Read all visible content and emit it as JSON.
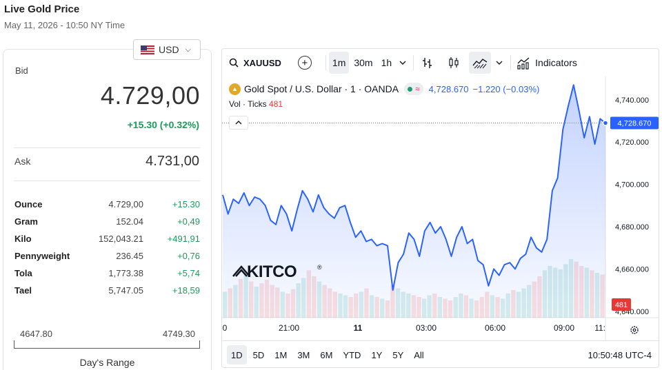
{
  "header": {
    "title": "Live Gold Price",
    "datetime": "May 11, 2026 - 10:50 NY Time"
  },
  "currency": {
    "selected": "USD",
    "icon": "us-flag-icon"
  },
  "quote": {
    "bid_label": "Bid",
    "bid": "4.729,00",
    "change": "+15.30 (+0.32%)",
    "ask_label": "Ask",
    "ask": "4.731,00"
  },
  "units": [
    {
      "name": "Ounce",
      "price": "4.729,00",
      "change": "+15.30"
    },
    {
      "name": "Gram",
      "price": "152.04",
      "change": "+0,49"
    },
    {
      "name": "Kilo",
      "price": "152,043.21",
      "change": "+491,91"
    },
    {
      "name": "Pennyweight",
      "price": "236.45",
      "change": "+0,76"
    },
    {
      "name": "Tola",
      "price": "1,773.38",
      "change": "+5,74"
    },
    {
      "name": "Tael",
      "price": "5,747.05",
      "change": "+18,59"
    }
  ],
  "day_range": {
    "low": "4647.80",
    "high": "4749.30",
    "label": "Day's Range"
  },
  "colors": {
    "up": "#1a9c5a",
    "line": "#2962ff",
    "down_volume": "#e53935"
  },
  "chart": {
    "symbol": "XAUUSD",
    "intervals": [
      "1m",
      "30m",
      "1h"
    ],
    "active_interval": "1m",
    "indicators_label": "Indicators",
    "legend": {
      "title": "Gold Spot / U.S. Dollar · 1 · OANDA",
      "price": "4,728.670",
      "change": "−1.220 (−0.03%)"
    },
    "vol_label": "Vol · Ticks",
    "vol_value": "481",
    "watermark": "KITCO",
    "ranges": [
      "1D",
      "5D",
      "1M",
      "3M",
      "6M",
      "YTD",
      "1Y",
      "5Y",
      "All"
    ],
    "active_range": "1D",
    "clock": "10:50:48 UTC-4",
    "price_label": "4,728.670",
    "volume_label": "481"
  },
  "chart_data": {
    "type": "line",
    "series": [
      {
        "values": [
          4695,
          4686,
          4693,
          4691,
          4696,
          4690,
          4694,
          4693,
          4690,
          4683,
          4681,
          4690,
          4686,
          4678,
          4688,
          4697,
          4693,
          4687,
          4695,
          4689,
          4686,
          4684,
          4689,
          4690,
          4682,
          4675,
          4678,
          4673,
          4674,
          4671,
          4672,
          4671,
          4650,
          4663,
          4667,
          4677,
          4674,
          4666,
          4678,
          4682,
          4677,
          4680,
          4674,
          4666,
          4675,
          4680,
          4672,
          4674,
          4664,
          4662,
          4652,
          4660,
          4657,
          4662,
          4663,
          4660,
          4665,
          4667,
          4675,
          4670,
          4668,
          4674,
          4697,
          4703,
          4726,
          4737,
          4747,
          4735,
          4722,
          4732,
          4719,
          4731,
          4729
        ]
      }
    ],
    "x_ticks": [
      "0",
      "21:00",
      "11",
      "03:00",
      "06:00",
      "09:00",
      "11:"
    ],
    "y_ticks": [
      "4,740.000",
      "4,720.000",
      "4,700.000",
      "4,680.000",
      "4,660.000",
      "4,640.000"
    ],
    "ylim": [
      4637,
      4751
    ],
    "volume_values": [
      30,
      34,
      38,
      45,
      50,
      42,
      36,
      40,
      44,
      38,
      35,
      30,
      28,
      33,
      40,
      46,
      55,
      48,
      42,
      38,
      34,
      30,
      28,
      26,
      24,
      28,
      30,
      34,
      26,
      24,
      22,
      20,
      38,
      34,
      30,
      28,
      26,
      24,
      22,
      26,
      28,
      24,
      22,
      20,
      24,
      28,
      26,
      22,
      20,
      24,
      30,
      26,
      24,
      22,
      28,
      32,
      30,
      34,
      38,
      42,
      48,
      55,
      60,
      58,
      56,
      62,
      68,
      65,
      60,
      58,
      55,
      52,
      50
    ]
  }
}
